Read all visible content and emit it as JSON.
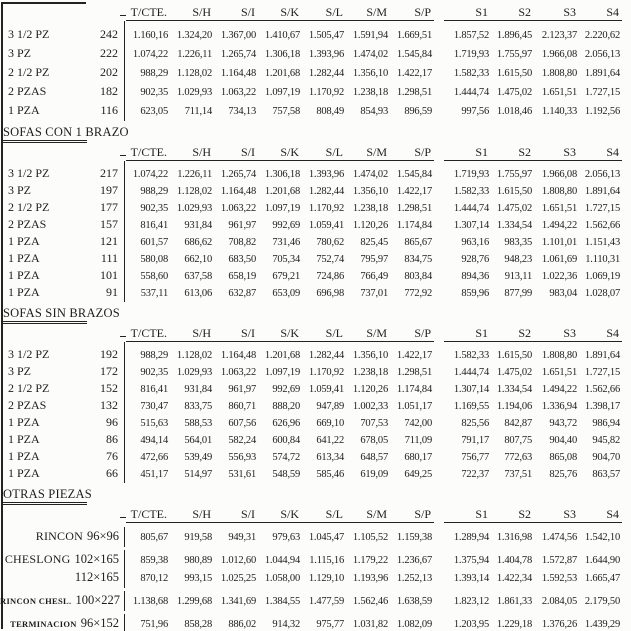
{
  "columns": [
    "T/CTE.",
    "S/H",
    "S/I",
    "S/K",
    "S/L",
    "S/M",
    "S/P",
    "S1",
    "S2",
    "S3",
    "S4"
  ],
  "sections": [
    {
      "title": "",
      "rows": [
        {
          "label": "3 1/2 PZ",
          "num": "242",
          "values": [
            "1.160,16",
            "1.324,20",
            "1.367,00",
            "1.410,67",
            "1.505,47",
            "1.591,94",
            "1.669,51",
            "1.857,52",
            "1.896,45",
            "2.123,37",
            "2.220,62"
          ]
        },
        {
          "label": "3 PZ",
          "num": "222",
          "values": [
            "1.074,22",
            "1.226,11",
            "1.265,74",
            "1.306,18",
            "1.393,96",
            "1.474,02",
            "1.545,84",
            "1.719,93",
            "1.755,97",
            "1.966,08",
            "2.056,13"
          ]
        },
        {
          "label": "2 1/2 PZ",
          "num": "202",
          "values": [
            "988,29",
            "1.128,02",
            "1.164,48",
            "1.201,68",
            "1.282,44",
            "1.356,10",
            "1.422,17",
            "1.582,33",
            "1.615,50",
            "1.808,80",
            "1.891,64"
          ]
        },
        {
          "label": "2 PZAS",
          "num": "182",
          "values": [
            "902,35",
            "1.029,93",
            "1.063,22",
            "1.097,19",
            "1.170,92",
            "1.238,18",
            "1.298,51",
            "1.444,74",
            "1.475,02",
            "1.651,51",
            "1.727,15"
          ]
        },
        {
          "label": "1 PZA",
          "num": "116",
          "values": [
            "623,05",
            "711,14",
            "734,13",
            "757,58",
            "808,49",
            "854,93",
            "896,59",
            "997,56",
            "1.018,46",
            "1.140,33",
            "1.192,56"
          ]
        }
      ]
    },
    {
      "title": "SOFAS CON 1 BRAZO",
      "rows": [
        {
          "label": "3 1/2 PZ",
          "num": "217",
          "values": [
            "1.074,22",
            "1.226,11",
            "1.265,74",
            "1.306,18",
            "1.393,96",
            "1.474,02",
            "1.545,84",
            "1.719,93",
            "1.755,97",
            "1.966,08",
            "2.056,13"
          ]
        },
        {
          "label": "3 PZ",
          "num": "197",
          "values": [
            "988,29",
            "1.128,02",
            "1.164,48",
            "1.201,68",
            "1.282,44",
            "1.356,10",
            "1.422,17",
            "1.582,33",
            "1.615,50",
            "1.808,80",
            "1.891,64"
          ]
        },
        {
          "label": "2 1/2 PZ",
          "num": "177",
          "values": [
            "902,35",
            "1.029,93",
            "1.063,22",
            "1.097,19",
            "1.170,92",
            "1.238,18",
            "1.298,51",
            "1.444,74",
            "1.475,02",
            "1.651,51",
            "1.727,15"
          ]
        },
        {
          "label": "2 PZAS",
          "num": "157",
          "values": [
            "816,41",
            "931,84",
            "961,97",
            "992,69",
            "1.059,41",
            "1.120,26",
            "1.174,84",
            "1.307,14",
            "1.334,54",
            "1.494,22",
            "1.562,66"
          ]
        },
        {
          "label": "1 PZA",
          "num": "121",
          "values": [
            "601,57",
            "686,62",
            "708,82",
            "731,46",
            "780,62",
            "825,45",
            "865,67",
            "963,16",
            "983,35",
            "1.101,01",
            "1.151,43"
          ]
        },
        {
          "label": "1 PZA",
          "num": "111",
          "values": [
            "580,08",
            "662,10",
            "683,50",
            "705,34",
            "752,74",
            "795,97",
            "834,75",
            "928,76",
            "948,23",
            "1.061,69",
            "1.110,31"
          ]
        },
        {
          "label": "1 PZA",
          "num": "101",
          "values": [
            "558,60",
            "637,58",
            "658,19",
            "679,21",
            "724,86",
            "766,49",
            "803,84",
            "894,36",
            "913,11",
            "1.022,36",
            "1.069,19"
          ]
        },
        {
          "label": "1 PZA",
          "num": "91",
          "values": [
            "537,11",
            "613,06",
            "632,87",
            "653,09",
            "696,98",
            "737,01",
            "772,92",
            "859,96",
            "877,99",
            "983,04",
            "1.028,07"
          ]
        }
      ]
    },
    {
      "title": "SOFAS SIN BRAZOS",
      "rows": [
        {
          "label": "3 1/2 PZ",
          "num": "192",
          "values": [
            "988,29",
            "1.128,02",
            "1.164,48",
            "1.201,68",
            "1.282,44",
            "1.356,10",
            "1.422,17",
            "1.582,33",
            "1.615,50",
            "1.808,80",
            "1.891,64"
          ]
        },
        {
          "label": "3 PZ",
          "num": "172",
          "values": [
            "902,35",
            "1.029,93",
            "1.063,22",
            "1.097,19",
            "1.170,92",
            "1.238,18",
            "1.298,51",
            "1.444,74",
            "1.475,02",
            "1.651,51",
            "1.727,15"
          ]
        },
        {
          "label": "2 1/2 PZ",
          "num": "152",
          "values": [
            "816,41",
            "931,84",
            "961,97",
            "992,69",
            "1.059,41",
            "1.120,26",
            "1.174,84",
            "1.307,14",
            "1.334,54",
            "1.494,22",
            "1.562,66"
          ]
        },
        {
          "label": "2 PZAS",
          "num": "132",
          "values": [
            "730,47",
            "833,75",
            "860,71",
            "888,20",
            "947,89",
            "1.002,33",
            "1.051,17",
            "1.169,55",
            "1.194,06",
            "1.336,94",
            "1.398,17"
          ]
        },
        {
          "label": "1 PZA",
          "num": "96",
          "values": [
            "515,63",
            "588,53",
            "607,56",
            "626,96",
            "669,10",
            "707,53",
            "742,00",
            "825,56",
            "842,87",
            "943,72",
            "986,94"
          ]
        },
        {
          "label": "1 PZA",
          "num": "86",
          "values": [
            "494,14",
            "564,01",
            "582,24",
            "600,84",
            "641,22",
            "678,05",
            "711,09",
            "791,17",
            "807,75",
            "904,40",
            "945,82"
          ]
        },
        {
          "label": "1 PZA",
          "num": "76",
          "values": [
            "472,66",
            "539,49",
            "556,93",
            "574,72",
            "613,34",
            "648,57",
            "680,17",
            "756,77",
            "772,63",
            "865,08",
            "904,70"
          ]
        },
        {
          "label": "1 PZA",
          "num": "66",
          "values": [
            "451,17",
            "514,97",
            "531,61",
            "548,59",
            "585,46",
            "619,09",
            "649,25",
            "722,37",
            "737,51",
            "825,76",
            "863,57"
          ]
        }
      ]
    },
    {
      "title": "OTRAS PIEZAS",
      "rows": [
        {
          "name": "RINCON",
          "dim": "96×96",
          "values": [
            "805,67",
            "919,58",
            "949,31",
            "979,63",
            "1.045,47",
            "1.105,52",
            "1.159,38",
            "1.289,94",
            "1.316,98",
            "1.474,56",
            "1.542,10"
          ]
        },
        {
          "name": "CHESLONG",
          "dim": "102×165",
          "values": [
            "859,38",
            "980,89",
            "1.012,60",
            "1.044,94",
            "1.115,16",
            "1.179,22",
            "1.236,67",
            "1.375,94",
            "1.404,78",
            "1.572,87",
            "1.644,90"
          ]
        },
        {
          "name": "",
          "dim": "112×165",
          "values": [
            "870,12",
            "993,15",
            "1.025,25",
            "1.058,00",
            "1.129,10",
            "1.193,96",
            "1.252,13",
            "1.393,14",
            "1.422,34",
            "1.592,53",
            "1.665,47"
          ]
        },
        {
          "name": "RINCON CHESL.",
          "dim": "100×227",
          "values": [
            "1.138,68",
            "1.299,68",
            "1.341,69",
            "1.384,55",
            "1.477,59",
            "1.562,46",
            "1.638,59",
            "1.823,12",
            "1.861,33",
            "2.084,05",
            "2.179,50"
          ]
        },
        {
          "name": "TERMINACION",
          "dim": "96×152",
          "values": [
            "751,96",
            "858,28",
            "886,02",
            "914,32",
            "975,77",
            "1.031,82",
            "1.082,09",
            "1.203,95",
            "1.229,18",
            "1.376,26",
            "1.439,29"
          ]
        },
        {
          "name": "",
          "dim": "96×192",
          "values": [
            "762,70",
            "870,54",
            "898,68",
            "927,38",
            "989,71",
            "1.046,56",
            "1.097,55",
            "1.221,15",
            "1.246,74",
            "1.395,92",
            "1.459,85"
          ]
        }
      ]
    }
  ]
}
